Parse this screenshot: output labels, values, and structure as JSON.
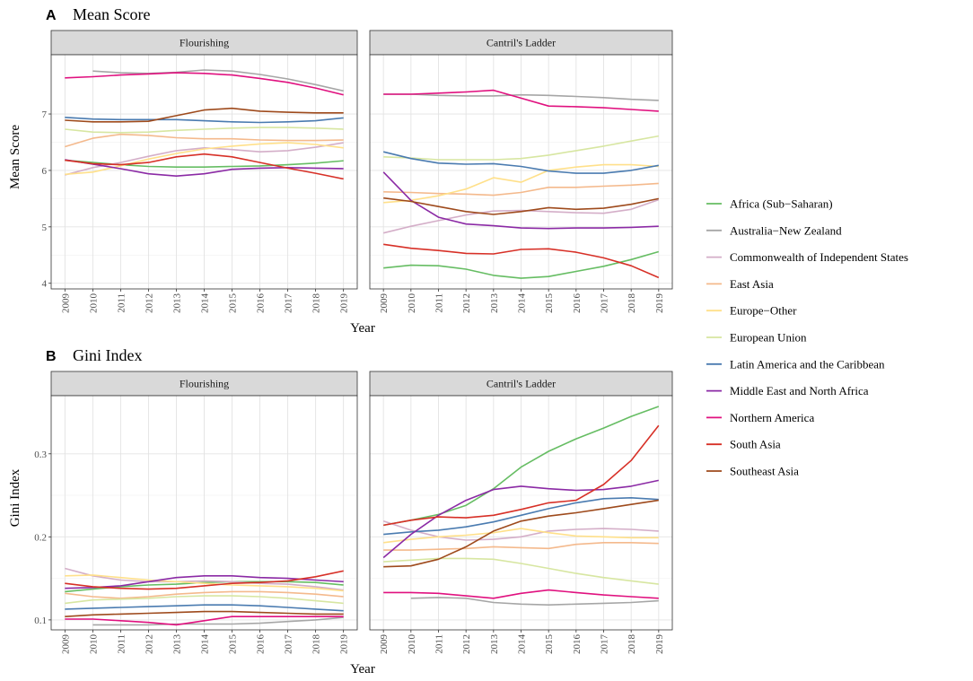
{
  "years": [
    "2009",
    "2010",
    "2011",
    "2012",
    "2013",
    "2014",
    "2015",
    "2016",
    "2017",
    "2018",
    "2019"
  ],
  "xlabel": "Year",
  "legend": [
    {
      "name": "Africa (Sub−Saharan)",
      "color": "#66bd63"
    },
    {
      "name": "Australia−New Zealand",
      "color": "#a6a6a6"
    },
    {
      "name": "Commonwealth of Independent States",
      "color": "#d4aec8"
    },
    {
      "name": "East Asia",
      "color": "#f4b98c"
    },
    {
      "name": "Europe−Other",
      "color": "#ffe08a"
    },
    {
      "name": "European Union",
      "color": "#d7e6a1"
    },
    {
      "name": "Latin America and the Caribbean",
      "color": "#4a7bb0"
    },
    {
      "name": "Middle East and North Africa",
      "color": "#8b2aa5"
    },
    {
      "name": "Northern America",
      "color": "#e0117f"
    },
    {
      "name": "South Asia",
      "color": "#d73027"
    },
    {
      "name": "Southeast Asia",
      "color": "#9e4a1c"
    }
  ],
  "chart_data": [
    {
      "id": "A",
      "letter": "A",
      "title": "Mean Score",
      "type": "line",
      "ylabel": "Mean Score",
      "ylim": [
        3.9,
        8.05
      ],
      "yticks": [
        4,
        5,
        6,
        7
      ],
      "ytick_labels": [
        "4",
        "5",
        "6",
        "7"
      ],
      "panels": [
        {
          "title": "Flourishing",
          "series": [
            {
              "name": "Africa (Sub−Saharan)",
              "values": [
                6.18,
                6.14,
                6.1,
                6.07,
                6.06,
                6.06,
                6.07,
                6.08,
                6.1,
                6.13,
                6.17
              ]
            },
            {
              "name": "Australia−New Zealand",
              "values": [
                null,
                7.76,
                7.73,
                7.72,
                7.74,
                7.78,
                7.76,
                7.7,
                7.62,
                7.52,
                7.41
              ]
            },
            {
              "name": "Commonwealth of Independent States",
              "values": [
                5.92,
                6.05,
                6.14,
                6.25,
                6.35,
                6.4,
                6.37,
                6.33,
                6.35,
                6.41,
                6.49
              ]
            },
            {
              "name": "East Asia",
              "values": [
                6.42,
                6.57,
                6.64,
                6.62,
                6.58,
                6.56,
                6.56,
                6.54,
                6.53,
                6.53,
                6.54
              ]
            },
            {
              "name": "Europe−Other",
              "values": [
                5.93,
                5.97,
                6.08,
                6.2,
                6.3,
                6.38,
                6.43,
                6.47,
                6.49,
                6.46,
                6.4
              ]
            },
            {
              "name": "European Union",
              "values": [
                6.73,
                6.68,
                6.67,
                6.68,
                6.71,
                6.73,
                6.75,
                6.76,
                6.76,
                6.75,
                6.73
              ]
            },
            {
              "name": "Latin America and the Caribbean",
              "values": [
                6.94,
                6.91,
                6.9,
                6.9,
                6.9,
                6.88,
                6.86,
                6.85,
                6.86,
                6.88,
                6.93
              ]
            },
            {
              "name": "Middle East and North Africa",
              "values": [
                6.19,
                6.11,
                6.03,
                5.94,
                5.9,
                5.94,
                6.02,
                6.04,
                6.05,
                6.04,
                6.03
              ]
            },
            {
              "name": "Northern America",
              "values": [
                7.64,
                7.66,
                7.69,
                7.71,
                7.73,
                7.72,
                7.69,
                7.63,
                7.56,
                7.46,
                7.34
              ]
            },
            {
              "name": "South Asia",
              "values": [
                6.18,
                6.12,
                6.1,
                6.14,
                6.24,
                6.29,
                6.24,
                6.14,
                6.04,
                5.95,
                5.85
              ]
            },
            {
              "name": "Southeast Asia",
              "values": [
                6.89,
                6.86,
                6.86,
                6.87,
                6.97,
                7.07,
                7.1,
                7.05,
                7.03,
                7.02,
                7.02
              ]
            }
          ]
        },
        {
          "title": "Cantril's Ladder",
          "series": [
            {
              "name": "Africa (Sub−Saharan)",
              "values": [
                4.27,
                4.32,
                4.31,
                4.25,
                4.14,
                4.09,
                4.12,
                4.21,
                4.3,
                4.42,
                4.56
              ]
            },
            {
              "name": "Australia−New Zealand",
              "values": [
                7.35,
                7.35,
                7.33,
                7.32,
                7.32,
                7.34,
                7.33,
                7.31,
                7.29,
                7.26,
                7.24
              ]
            },
            {
              "name": "Commonwealth of Independent States",
              "values": [
                4.89,
                5.01,
                5.11,
                5.21,
                5.28,
                5.29,
                5.27,
                5.25,
                5.24,
                5.31,
                5.48
              ]
            },
            {
              "name": "East Asia",
              "values": [
                5.62,
                5.61,
                5.59,
                5.58,
                5.56,
                5.61,
                5.7,
                5.7,
                5.72,
                5.74,
                5.77
              ]
            },
            {
              "name": "Europe−Other",
              "values": [
                5.43,
                5.47,
                5.55,
                5.67,
                5.87,
                5.79,
                6.0,
                6.06,
                6.1,
                6.1,
                6.07
              ]
            },
            {
              "name": "European Union",
              "values": [
                6.24,
                6.22,
                6.19,
                6.19,
                6.19,
                6.21,
                6.27,
                6.35,
                6.43,
                6.52,
                6.61
              ]
            },
            {
              "name": "Latin America and the Caribbean",
              "values": [
                6.33,
                6.21,
                6.13,
                6.11,
                6.12,
                6.07,
                5.99,
                5.95,
                5.95,
                6.0,
                6.09
              ]
            },
            {
              "name": "Middle East and North Africa",
              "values": [
                5.97,
                5.47,
                5.17,
                5.05,
                5.02,
                4.98,
                4.97,
                4.98,
                4.98,
                4.99,
                5.01
              ]
            },
            {
              "name": "Northern America",
              "values": [
                7.35,
                7.35,
                7.37,
                7.39,
                7.42,
                7.28,
                7.14,
                7.13,
                7.11,
                7.08,
                7.05
              ]
            },
            {
              "name": "South Asia",
              "values": [
                4.69,
                4.62,
                4.58,
                4.53,
                4.52,
                4.6,
                4.61,
                4.55,
                4.45,
                4.31,
                4.1
              ]
            },
            {
              "name": "Southeast Asia",
              "values": [
                5.51,
                5.45,
                5.36,
                5.27,
                5.22,
                5.27,
                5.34,
                5.31,
                5.33,
                5.4,
                5.5
              ]
            }
          ]
        }
      ]
    },
    {
      "id": "B",
      "letter": "B",
      "title": "Gini Index",
      "type": "line",
      "ylabel": "Gini Index",
      "ylim": [
        0.088,
        0.37
      ],
      "yticks": [
        0.1,
        0.2,
        0.3
      ],
      "ytick_labels": [
        "0.1",
        "0.2",
        "0.3"
      ],
      "panels": [
        {
          "title": "Flourishing",
          "series": [
            {
              "name": "Africa (Sub−Saharan)",
              "values": [
                0.134,
                0.137,
                0.14,
                0.142,
                0.143,
                0.145,
                0.146,
                0.146,
                0.146,
                0.145,
                0.142
              ]
            },
            {
              "name": "Australia−New Zealand",
              "values": [
                null,
                0.094,
                0.094,
                0.094,
                0.095,
                0.095,
                0.095,
                0.096,
                0.098,
                0.1,
                0.103
              ]
            },
            {
              "name": "Commonwealth of Independent States",
              "values": [
                0.162,
                0.153,
                0.148,
                0.146,
                0.146,
                0.147,
                0.146,
                0.144,
                0.143,
                0.14,
                0.136
              ]
            },
            {
              "name": "East Asia",
              "values": [
                0.132,
                0.128,
                0.126,
                0.128,
                0.131,
                0.133,
                0.134,
                0.134,
                0.133,
                0.131,
                0.128
              ]
            },
            {
              "name": "Europe−Other",
              "values": [
                0.153,
                0.154,
                0.151,
                0.148,
                0.146,
                0.144,
                0.142,
                0.141,
                0.14,
                0.138,
                0.135
              ]
            },
            {
              "name": "European Union",
              "values": [
                0.12,
                0.124,
                0.125,
                0.126,
                0.128,
                0.129,
                0.129,
                0.128,
                0.126,
                0.123,
                0.12
              ]
            },
            {
              "name": "Latin America and the Caribbean",
              "values": [
                0.113,
                0.114,
                0.115,
                0.116,
                0.117,
                0.118,
                0.118,
                0.117,
                0.115,
                0.113,
                0.111
              ]
            },
            {
              "name": "Middle East and North Africa",
              "values": [
                0.138,
                0.139,
                0.141,
                0.146,
                0.151,
                0.153,
                0.153,
                0.151,
                0.15,
                0.148,
                0.146
              ]
            },
            {
              "name": "Northern America",
              "values": [
                0.101,
                0.101,
                0.099,
                0.097,
                0.094,
                0.099,
                0.104,
                0.104,
                0.104,
                0.104,
                0.104
              ]
            },
            {
              "name": "South Asia",
              "values": [
                0.144,
                0.14,
                0.138,
                0.137,
                0.138,
                0.141,
                0.144,
                0.145,
                0.147,
                0.152,
                0.159
              ]
            },
            {
              "name": "Southeast Asia",
              "values": [
                0.104,
                0.106,
                0.107,
                0.108,
                0.109,
                0.11,
                0.11,
                0.109,
                0.108,
                0.107,
                0.107
              ]
            }
          ]
        },
        {
          "title": "Cantril's Ladder",
          "series": [
            {
              "name": "Africa (Sub−Saharan)",
              "values": [
                0.214,
                0.22,
                0.227,
                0.238,
                0.258,
                0.284,
                0.303,
                0.318,
                0.331,
                0.345,
                0.357
              ]
            },
            {
              "name": "Australia−New Zealand",
              "values": [
                null,
                0.126,
                0.127,
                0.126,
                0.121,
                0.119,
                0.118,
                0.119,
                0.12,
                0.121,
                0.123
              ]
            },
            {
              "name": "Commonwealth of Independent States",
              "values": [
                0.219,
                0.208,
                0.2,
                0.196,
                0.197,
                0.2,
                0.207,
                0.209,
                0.21,
                0.209,
                0.207
              ]
            },
            {
              "name": "East Asia",
              "values": [
                0.184,
                0.184,
                0.185,
                0.186,
                0.188,
                0.187,
                0.186,
                0.191,
                0.193,
                0.193,
                0.192
              ]
            },
            {
              "name": "Europe−Other",
              "values": [
                0.193,
                0.197,
                0.2,
                0.202,
                0.205,
                0.21,
                0.205,
                0.201,
                0.2,
                0.199,
                0.199
              ]
            },
            {
              "name": "European Union",
              "values": [
                0.17,
                0.172,
                0.174,
                0.174,
                0.173,
                0.168,
                0.162,
                0.156,
                0.151,
                0.147,
                0.143
              ]
            },
            {
              "name": "Latin America and the Caribbean",
              "values": [
                0.203,
                0.206,
                0.208,
                0.212,
                0.218,
                0.226,
                0.234,
                0.241,
                0.246,
                0.247,
                0.245
              ]
            },
            {
              "name": "Middle East and North Africa",
              "values": [
                0.175,
                0.203,
                0.226,
                0.244,
                0.257,
                0.261,
                0.258,
                0.256,
                0.257,
                0.261,
                0.268
              ]
            },
            {
              "name": "Northern America",
              "values": [
                0.133,
                0.133,
                0.132,
                0.129,
                0.126,
                0.132,
                0.136,
                0.133,
                0.13,
                0.128,
                0.126
              ]
            },
            {
              "name": "South Asia",
              "values": [
                0.214,
                0.22,
                0.224,
                0.223,
                0.226,
                0.233,
                0.241,
                0.244,
                0.263,
                0.292,
                0.334
              ]
            },
            {
              "name": "Southeast Asia",
              "values": [
                0.164,
                0.165,
                0.173,
                0.188,
                0.207,
                0.219,
                0.225,
                0.229,
                0.234,
                0.239,
                0.244
              ]
            }
          ]
        }
      ]
    }
  ]
}
